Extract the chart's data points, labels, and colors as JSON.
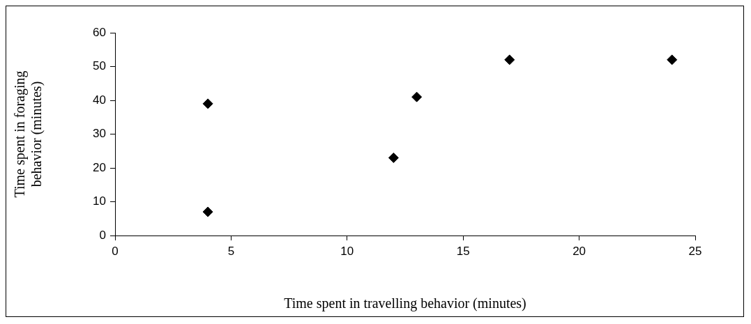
{
  "chart_data": {
    "type": "scatter",
    "xlabel": "Time spent in travelling behavior (minutes)",
    "ylabel": "Time spent in foraging behavior (minutes)",
    "x": [
      4,
      4,
      12,
      13,
      17,
      24
    ],
    "series": [
      {
        "color": "#000000",
        "values": [
          39,
          7,
          23,
          41,
          52,
          52
        ]
      }
    ],
    "xlim": [
      0,
      25
    ],
    "xticks": [
      0,
      5,
      10,
      15,
      20,
      25
    ],
    "ylim": [
      0,
      60
    ],
    "yticks": [
      0,
      10,
      20,
      30,
      40,
      50,
      60
    ],
    "grid": false,
    "legend": false,
    "marker": "diamond"
  }
}
